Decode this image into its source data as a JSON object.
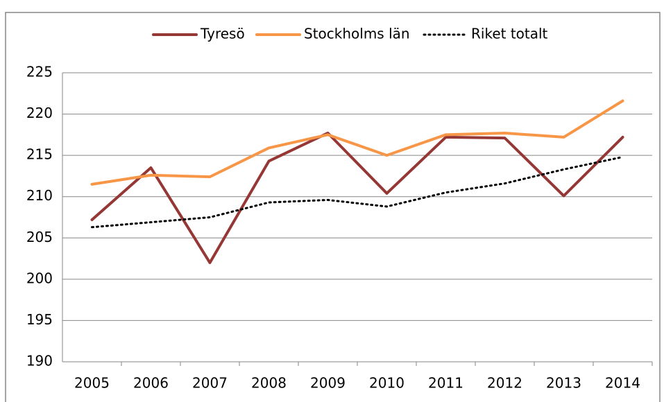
{
  "chart_data": {
    "type": "line",
    "categories": [
      "2005",
      "2006",
      "2007",
      "2008",
      "2009",
      "2010",
      "2011",
      "2012",
      "2013",
      "2014"
    ],
    "series": [
      {
        "name": "Tyresö",
        "color": "#953735",
        "dash": "solid",
        "values": [
          207.2,
          213.5,
          202.0,
          214.3,
          217.7,
          210.4,
          217.2,
          217.1,
          210.1,
          217.2
        ]
      },
      {
        "name": "Stockholms län",
        "color": "#f79646",
        "dash": "solid",
        "values": [
          211.5,
          212.6,
          212.4,
          215.9,
          217.5,
          215.0,
          217.5,
          217.7,
          217.2,
          221.6
        ]
      },
      {
        "name": "Riket totalt",
        "color": "#000000",
        "dash": "dotted",
        "values": [
          206.3,
          206.9,
          207.5,
          209.3,
          209.6,
          208.8,
          210.5,
          211.6,
          213.3,
          214.8
        ]
      }
    ],
    "ylim": [
      190,
      225
    ],
    "yticks": [
      190,
      195,
      200,
      205,
      210,
      215,
      220,
      225
    ],
    "grid": true,
    "legend": "top"
  }
}
